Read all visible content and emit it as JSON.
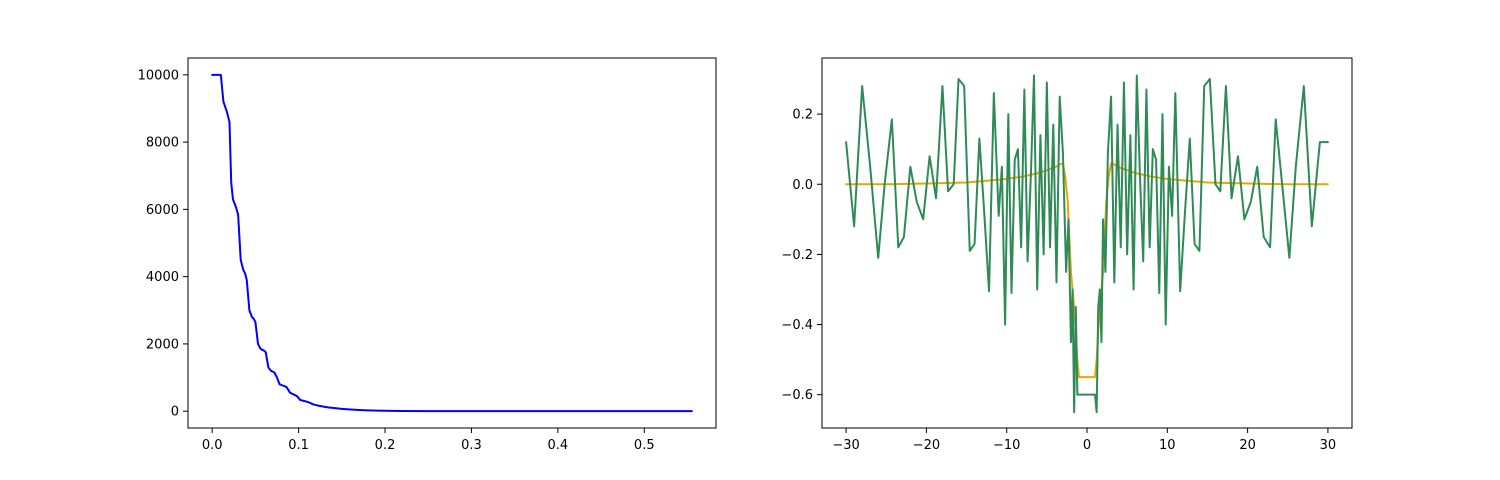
{
  "chart_data": [
    {
      "type": "line",
      "title": "",
      "xlabel": "",
      "ylabel": "",
      "xlim": [
        -0.028,
        0.583
      ],
      "ylim": [
        -500,
        10500
      ],
      "x_ticks": [
        0.0,
        0.1,
        0.2,
        0.3,
        0.4,
        0.5
      ],
      "x_tick_labels": [
        "0.0",
        "0.1",
        "0.2",
        "0.3",
        "0.4",
        "0.5"
      ],
      "y_ticks": [
        0,
        2000,
        4000,
        6000,
        8000,
        10000
      ],
      "y_tick_labels": [
        "0",
        "2000",
        "4000",
        "6000",
        "8000",
        "10000"
      ],
      "grid": false,
      "series": [
        {
          "color": "#0000ff",
          "x": [
            0.0,
            0.01,
            0.013,
            0.017,
            0.02,
            0.022,
            0.024,
            0.027,
            0.03,
            0.033,
            0.036,
            0.038,
            0.04,
            0.043,
            0.046,
            0.048,
            0.05,
            0.053,
            0.056,
            0.06,
            0.062,
            0.065,
            0.068,
            0.072,
            0.075,
            0.078,
            0.082,
            0.086,
            0.09,
            0.094,
            0.098,
            0.102,
            0.107,
            0.112,
            0.117,
            0.122,
            0.128,
            0.135,
            0.142,
            0.15,
            0.16,
            0.17,
            0.18,
            0.2,
            0.22,
            0.25,
            0.3,
            0.35,
            0.4,
            0.45,
            0.5,
            0.555
          ],
          "y": [
            10000,
            10000,
            9200,
            8900,
            8600,
            6800,
            6300,
            6100,
            5850,
            4500,
            4200,
            4100,
            3900,
            3000,
            2800,
            2750,
            2650,
            2000,
            1850,
            1800,
            1750,
            1300,
            1200,
            1150,
            1000,
            800,
            760,
            720,
            550,
            500,
            450,
            330,
            300,
            260,
            200,
            170,
            140,
            110,
            90,
            70,
            50,
            35,
            25,
            12,
            6,
            3,
            1,
            0,
            0,
            0,
            0,
            0
          ]
        }
      ]
    },
    {
      "type": "line",
      "title": "",
      "xlabel": "",
      "ylabel": "",
      "xlim": [
        -33,
        33
      ],
      "ylim": [
        -0.695,
        0.36
      ],
      "x_ticks": [
        -30,
        -20,
        -10,
        0,
        10,
        20,
        30
      ],
      "x_tick_labels": [
        "−30",
        "−20",
        "−10",
        "0",
        "10",
        "20",
        "30"
      ],
      "y_ticks": [
        -0.6,
        -0.4,
        -0.2,
        0.0,
        0.2
      ],
      "y_tick_labels": [
        "−0.6",
        "−0.4",
        "−0.2",
        "0.0",
        "0.2"
      ],
      "grid": false,
      "series": [
        {
          "color": "#e6a700",
          "x": [
            -30,
            -25,
            -20,
            -15,
            -10,
            -8,
            -6,
            -5,
            -4,
            -3.5,
            -3,
            -2.7,
            -2.4,
            -2.2,
            -2.0,
            -1.8,
            -1.6,
            -1.4,
            -1.2,
            -1.0,
            -0.8,
            -0.6,
            -0.4,
            -0.2,
            0,
            0.2,
            0.4,
            0.6,
            0.8,
            1.0,
            1.2,
            1.4,
            1.6,
            1.8,
            2.0,
            2.2,
            2.4,
            2.7,
            3.0,
            3.5,
            4,
            5,
            6,
            8,
            10,
            15,
            20,
            25,
            30
          ],
          "y": [
            0.0,
            0.0,
            0.002,
            0.005,
            0.015,
            0.022,
            0.032,
            0.04,
            0.048,
            0.055,
            0.06,
            0.02,
            -0.05,
            -0.15,
            -0.25,
            -0.3,
            -0.35,
            -0.42,
            -0.5,
            -0.55,
            -0.55,
            -0.55,
            -0.55,
            -0.55,
            -0.55,
            -0.55,
            -0.55,
            -0.55,
            -0.55,
            -0.55,
            -0.5,
            -0.42,
            -0.35,
            -0.3,
            -0.25,
            -0.15,
            -0.05,
            0.02,
            0.06,
            0.055,
            0.048,
            0.04,
            0.032,
            0.022,
            0.015,
            0.005,
            0.002,
            0.0,
            0.0
          ]
        },
        {
          "color": "#2e8b57",
          "x": [
            -30,
            -29,
            -28,
            -27,
            -26,
            -25.2,
            -24.3,
            -23.5,
            -22.8,
            -22,
            -21.2,
            -20.4,
            -19.6,
            -18.8,
            -18,
            -17.3,
            -16.6,
            -16,
            -15.3,
            -14.6,
            -14,
            -13.4,
            -12.8,
            -12.2,
            -11.6,
            -11,
            -10.6,
            -10.2,
            -9.8,
            -9.4,
            -9,
            -8.6,
            -8.2,
            -7.8,
            -7.4,
            -7,
            -6.6,
            -6.2,
            -5.8,
            -5.4,
            -5,
            -4.6,
            -4.2,
            -3.8,
            -3.4,
            -3,
            -2.6,
            -2.3,
            -2.0,
            -1.8,
            -1.6,
            -1.4,
            -1.2,
            -1.0,
            -0.8,
            -0.5,
            0,
            0.5,
            0.8,
            1.0,
            1.2,
            1.4,
            1.6,
            1.8,
            2.0,
            2.3,
            2.6,
            3.0,
            3.4,
            3.8,
            4.2,
            4.6,
            5,
            5.4,
            5.8,
            6.2,
            6.6,
            7,
            7.4,
            7.8,
            8.2,
            8.6,
            9,
            9.4,
            9.8,
            10.2,
            10.6,
            11,
            11.6,
            12.2,
            12.8,
            13.4,
            14,
            14.6,
            15.3,
            16,
            16.6,
            17.3,
            18,
            18.8,
            19.6,
            20.4,
            21.2,
            22,
            22.8,
            23.5,
            24.3,
            25.2,
            26,
            27,
            28,
            29,
            30
          ],
          "y": [
            0.12,
            -0.12,
            0.28,
            0.05,
            -0.21,
            0.0,
            0.185,
            -0.18,
            -0.15,
            0.05,
            -0.05,
            -0.1,
            0.08,
            -0.04,
            0.28,
            -0.02,
            0.0,
            0.3,
            0.28,
            -0.19,
            -0.17,
            0.13,
            -0.08,
            -0.305,
            0.26,
            -0.09,
            0.05,
            -0.4,
            0.2,
            -0.31,
            0.07,
            0.1,
            -0.18,
            0.27,
            -0.22,
            0.02,
            0.31,
            -0.3,
            0.14,
            -0.2,
            0.29,
            -0.18,
            0.17,
            -0.28,
            0.25,
            0.09,
            -0.25,
            -0.1,
            -0.45,
            -0.3,
            -0.65,
            -0.35,
            -0.6,
            -0.6,
            -0.6,
            -0.6,
            -0.6,
            -0.6,
            -0.6,
            -0.6,
            -0.65,
            -0.35,
            -0.3,
            -0.45,
            -0.1,
            -0.25,
            0.09,
            0.25,
            -0.28,
            0.17,
            -0.18,
            0.29,
            -0.2,
            0.14,
            -0.3,
            0.31,
            0.02,
            -0.22,
            0.27,
            -0.18,
            0.1,
            0.07,
            -0.31,
            0.2,
            -0.4,
            0.05,
            -0.09,
            0.26,
            -0.305,
            -0.08,
            0.13,
            -0.17,
            -0.19,
            0.28,
            0.3,
            0.0,
            -0.02,
            0.28,
            -0.04,
            0.08,
            -0.1,
            -0.05,
            0.05,
            -0.15,
            -0.18,
            0.185,
            0.0,
            -0.21,
            0.05,
            0.28,
            -0.12,
            0.12,
            0.12
          ]
        }
      ]
    }
  ]
}
